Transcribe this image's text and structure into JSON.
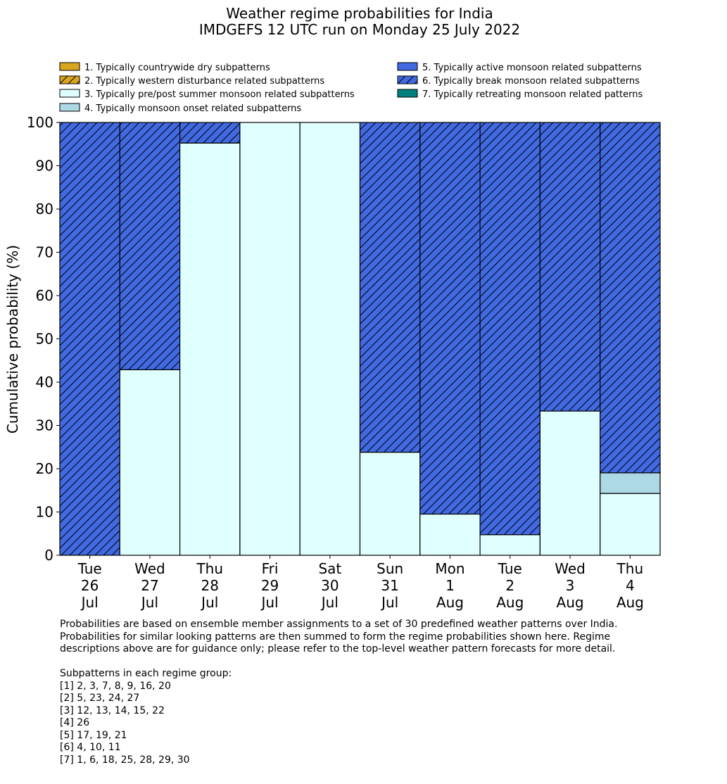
{
  "chart_data": {
    "type": "bar",
    "stacked": true,
    "title": "Weather regime probabilities for India",
    "subtitle": "IMDGEFS 12 UTC run on Monday 25 July 2022",
    "xlabel": "",
    "ylabel": "Cumulative probability (%)",
    "ylim": [
      0,
      100
    ],
    "yticks": [
      0,
      10,
      20,
      30,
      40,
      50,
      60,
      70,
      80,
      90,
      100
    ],
    "grid": false,
    "legend_placement": "top",
    "categories": [
      [
        "Tue",
        "26",
        "Jul"
      ],
      [
        "Wed",
        "27",
        "Jul"
      ],
      [
        "Thu",
        "28",
        "Jul"
      ],
      [
        "Fri",
        "29",
        "Jul"
      ],
      [
        "Sat",
        "30",
        "Jul"
      ],
      [
        "Sun",
        "31",
        "Jul"
      ],
      [
        "Mon",
        "1",
        "Aug"
      ],
      [
        "Tue",
        "2",
        "Aug"
      ],
      [
        "Wed",
        "3",
        "Aug"
      ],
      [
        "Thu",
        "4",
        "Aug"
      ]
    ],
    "series": [
      {
        "name": "1. Typically countrywide dry subpatterns",
        "color": "#DAA520",
        "hatch": false,
        "values": [
          0,
          0,
          0,
          0,
          0,
          0,
          0,
          0,
          0,
          0
        ]
      },
      {
        "name": "2. Typically western disturbance related subpatterns",
        "color": "#DAA520",
        "hatch": true,
        "values": [
          0,
          0,
          0,
          0,
          0,
          0,
          0,
          0,
          0,
          0
        ]
      },
      {
        "name": "3. Typically pre/post summer monsoon related subpatterns",
        "color": "#E0FFFF",
        "hatch": false,
        "values": [
          0,
          42.86,
          95.24,
          100,
          100,
          23.81,
          9.52,
          4.76,
          33.33,
          14.29
        ]
      },
      {
        "name": "4. Typically monsoon onset related subpatterns",
        "color": "#ADD8E6",
        "hatch": false,
        "values": [
          0,
          0,
          0,
          0,
          0,
          0,
          0,
          0,
          0,
          4.76
        ]
      },
      {
        "name": "5. Typically active monsoon related subpatterns",
        "color": "#4169E1",
        "hatch": false,
        "values": [
          0,
          0,
          0,
          0,
          0,
          0,
          0,
          0,
          0,
          0
        ]
      },
      {
        "name": "6. Typically break monsoon related subpatterns",
        "color": "#4169E1",
        "hatch": true,
        "values": [
          100,
          57.14,
          4.76,
          0,
          0,
          76.19,
          90.48,
          95.24,
          66.67,
          80.95
        ]
      },
      {
        "name": "7. Typically retreating monsoon related patterns",
        "color": "#008080",
        "hatch": false,
        "values": [
          0,
          0,
          0,
          0,
          0,
          0,
          0,
          0,
          0,
          0
        ]
      }
    ]
  },
  "notes": {
    "lines": [
      "Probabilities are based on ensemble member assignments to a set of 30 predefined weather patterns over India.",
      "Probabilities for similar looking patterns are then summed to form the regime probabilities shown here. Regime",
      "descriptions above are for guidance only; please refer to the top-level weather pattern forecasts for more detail.",
      "",
      "Subpatterns in each regime group:",
      "[1] 2, 3, 7, 8, 9, 16, 20",
      "[2] 5, 23, 24, 27",
      "[3] 12, 13, 14, 15, 22",
      "[4] 26",
      "[5] 17, 19, 21",
      "[6] 4, 10, 11",
      "[7] 1, 6, 18, 25, 28, 29, 30"
    ]
  }
}
